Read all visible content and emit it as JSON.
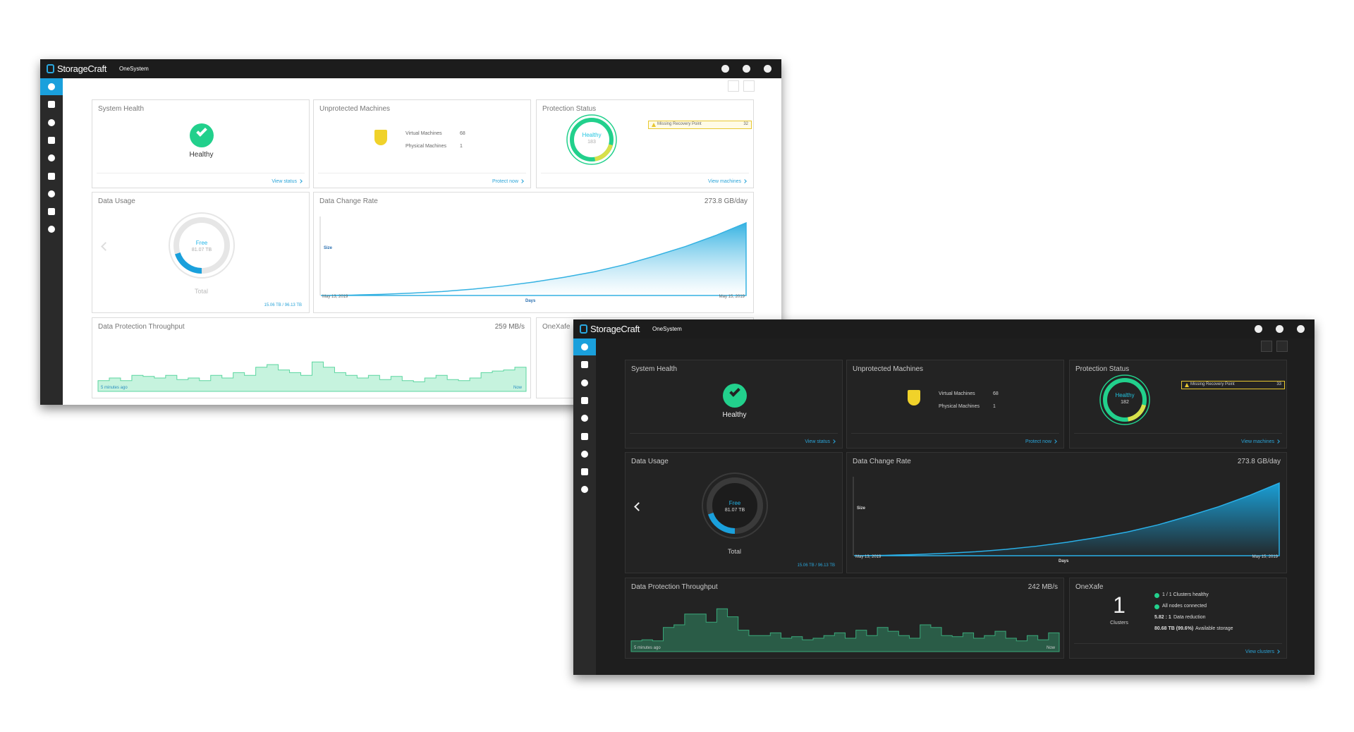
{
  "dashboards": [
    {
      "theme": "light",
      "brand": "StorageCraft",
      "product": "OneSystem",
      "system_health": {
        "title": "System Health",
        "status": "Healthy",
        "link": "View status"
      },
      "unprotected": {
        "title": "Unprotected Machines",
        "rows": [
          {
            "label": "Virtual Machines",
            "value": 68
          },
          {
            "label": "Physical Machines",
            "value": 1
          }
        ],
        "link": "Protect now"
      },
      "protection": {
        "title": "Protection Status",
        "status": "Healthy",
        "count": 183,
        "alert": {
          "label": "Missing Recovery Point",
          "count": 32
        },
        "link": "View machines"
      },
      "data_usage": {
        "title": "Data Usage",
        "free_label": "Free",
        "free": "81.07 TB",
        "total_label": "Total",
        "usage": "15.06 TB / 96.13 TB"
      },
      "change_rate": {
        "title": "Data Change Rate",
        "rate": "273.8 GB/day",
        "y_label": "Size",
        "x_label": "Days",
        "start": "May 13, 2019",
        "end": "May 15, 2019",
        "ylim": [
          0,
          100
        ],
        "values": [
          0,
          0.5,
          1.5,
          3,
          5,
          8,
          12,
          17,
          23,
          30,
          39,
          50,
          62,
          76,
          92
        ]
      },
      "throughput": {
        "title": "Data Protection Throughput",
        "rate": "259 MB/s",
        "start": "5 minutes ago",
        "end": "Now",
        "ylim": [
          0,
          100
        ],
        "values": [
          20,
          25,
          20,
          30,
          28,
          25,
          30,
          22,
          25,
          20,
          30,
          25,
          35,
          30,
          45,
          50,
          40,
          35,
          30,
          55,
          45,
          35,
          30,
          25,
          30,
          22,
          28,
          20,
          18,
          25,
          30,
          22,
          20,
          25,
          35,
          38,
          40,
          45
        ]
      },
      "onexafe": {
        "title": "OneXafe"
      }
    },
    {
      "theme": "dark",
      "brand": "StorageCraft",
      "product": "OneSystem",
      "system_health": {
        "title": "System Health",
        "status": "Healthy",
        "link": "View status"
      },
      "unprotected": {
        "title": "Unprotected Machines",
        "rows": [
          {
            "label": "Virtual Machines",
            "value": 68
          },
          {
            "label": "Physical Machines",
            "value": 1
          }
        ],
        "link": "Protect now"
      },
      "protection": {
        "title": "Protection Status",
        "status": "Healthy",
        "count": 182,
        "alert": {
          "label": "Missing Recovery Point",
          "count": 33
        },
        "link": "View machines"
      },
      "data_usage": {
        "title": "Data Usage",
        "free_label": "Free",
        "free": "81.07 TB",
        "total_label": "Total",
        "usage": "15.06 TB / 96.13 TB"
      },
      "change_rate": {
        "title": "Data Change Rate",
        "rate": "273.8 GB/day",
        "y_label": "Size",
        "x_label": "Days",
        "start": "May 13, 2019",
        "end": "May 15, 2019",
        "ylim": [
          0,
          100
        ],
        "values": [
          0,
          0.5,
          1.5,
          3,
          5,
          8,
          12,
          17,
          23,
          30,
          39,
          50,
          62,
          76,
          92
        ]
      },
      "throughput": {
        "title": "Data Protection Throughput",
        "rate": "242 MB/s",
        "start": "5 minutes ago",
        "end": "Now",
        "ylim": [
          0,
          100
        ],
        "values": [
          20,
          22,
          20,
          45,
          50,
          70,
          70,
          55,
          80,
          65,
          40,
          30,
          30,
          35,
          25,
          28,
          22,
          25,
          30,
          35,
          25,
          40,
          30,
          45,
          38,
          30,
          25,
          50,
          45,
          30,
          28,
          35,
          25,
          30,
          38,
          25,
          20,
          30,
          22,
          35
        ]
      },
      "onexafe": {
        "title": "OneXafe",
        "count": 1,
        "count_label": "Clusters",
        "rows": [
          {
            "text": "1 / 1 Clusters healthy"
          },
          {
            "text": "All nodes connected"
          },
          {
            "value": "5.82 : 1",
            "text": "Data reduction"
          },
          {
            "value": "80.68 TB (99.6%)",
            "text": "Available storage"
          }
        ],
        "link": "View clusters"
      }
    }
  ]
}
